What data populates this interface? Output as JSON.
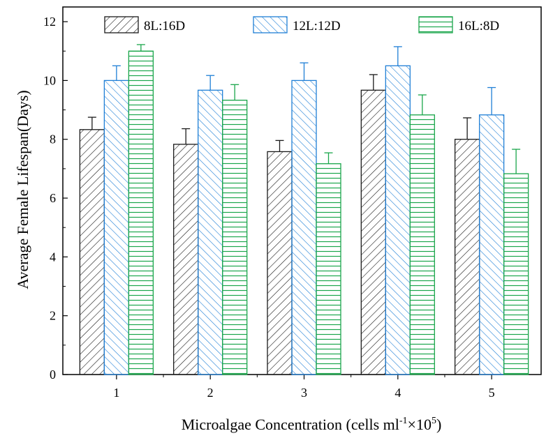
{
  "chart_data": {
    "type": "bar",
    "categories": [
      "1",
      "2",
      "3",
      "4",
      "5"
    ],
    "series": [
      {
        "name": "8L:16D",
        "values": [
          8.33,
          7.83,
          7.58,
          9.67,
          8.0
        ],
        "errors": [
          0.42,
          0.53,
          0.38,
          0.53,
          0.73
        ],
        "color": "#1a1a1a",
        "pattern": "forward-diagonal-hatch"
      },
      {
        "name": "12L:12D",
        "values": [
          10.0,
          9.67,
          10.0,
          10.5,
          8.83
        ],
        "errors": [
          0.5,
          0.5,
          0.6,
          0.65,
          0.93
        ],
        "color": "#1f7fd6",
        "pattern": "backward-diagonal-hatch"
      },
      {
        "name": "16L:8D",
        "values": [
          11.0,
          9.33,
          7.17,
          8.83,
          6.83
        ],
        "errors": [
          0.22,
          0.53,
          0.37,
          0.68,
          0.83
        ],
        "color": "#1aa64b",
        "pattern": "horizontal-lines"
      }
    ],
    "xlabel": {
      "main": "Microalgae Concentration (cells ml",
      "sup1": "-1",
      "mid": "×10",
      "sup2": "5",
      "end": ")"
    },
    "ylabel": "Average Female Lifespan(Days)",
    "ylim": [
      0,
      12.5
    ],
    "yticks": [
      "0",
      "2",
      "4",
      "6",
      "8",
      "10",
      "12"
    ],
    "grid": false,
    "legend": "top, horizontal"
  }
}
